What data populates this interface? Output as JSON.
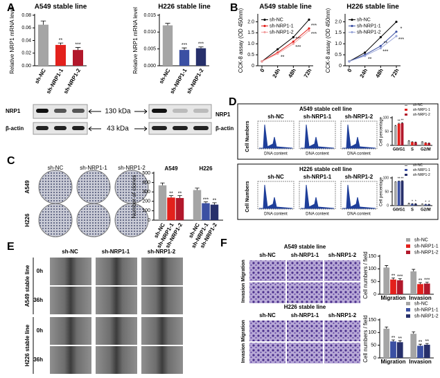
{
  "panel_labels": [
    "A",
    "B",
    "C",
    "D",
    "E",
    "F"
  ],
  "blot": {
    "left_labels": [
      "NRP1",
      "β-actin"
    ],
    "markers": [
      "130 kDa",
      "43 kDa"
    ],
    "right_labels": [
      "NRP1",
      "β-actin"
    ]
  },
  "colony": {
    "columns": [
      "sh-NC",
      "sh-NRP1-1",
      "sh-NRP1-2"
    ],
    "rows": [
      "A549",
      "H226"
    ]
  },
  "flow": [
    {
      "title": "A549 stable cell line",
      "columns": [
        "sh-NC",
        "sh-NRP1-1",
        "sh-NRP1-2"
      ],
      "ylabel": "Cell Numbers",
      "xlabel": "DNA content"
    },
    {
      "title": "H226 stable cell line",
      "columns": [
        "sh-NC",
        "sh-NRP1-1",
        "sh-NRP1-2"
      ],
      "ylabel": "Cell Numbers",
      "xlabel": "DNA content"
    }
  ],
  "wound": {
    "columns": [
      "sh-NC",
      "sh-NRP1-1",
      "sh-NRP1-2"
    ],
    "times": [
      "0h",
      "36h"
    ],
    "lines": [
      "A549 stable line",
      "H226 stable line"
    ]
  },
  "transwell": [
    {
      "title": "A549 stable line",
      "columns": [
        "sh-NC",
        "sh-NRP1-1",
        "sh-NRP1-2"
      ],
      "rows": [
        "Migration",
        "Invasion"
      ]
    },
    {
      "title": "H226 stable line",
      "columns": [
        "sh-NC",
        "sh-NRP1-1",
        "sh-NRP1-2"
      ],
      "rows": [
        "Migration",
        "Invasion"
      ]
    }
  ],
  "chart_data": [
    {
      "type": "bar",
      "title": "A549 stable line",
      "ylabel": "Relative NRP1 mRNA level",
      "categories": [
        "sh-NC",
        "sh-NRP1-1",
        "sh-NRP1-2"
      ],
      "values": [
        0.065,
        0.033,
        0.025
      ],
      "errors": [
        0.006,
        0.003,
        0.004
      ],
      "colors": [
        "#a5a5a5",
        "#e3211c",
        "#b2182b"
      ],
      "sig": [
        null,
        "**",
        "***"
      ],
      "ylim": [
        0,
        0.08
      ],
      "yticks": [
        {
          "value": 0,
          "label": "0.00"
        },
        0.02,
        0.04,
        0.06,
        0.08
      ]
    },
    {
      "type": "bar",
      "title": "H226 stable line",
      "ylabel": "Relative NRP1 mRNA level",
      "categories": [
        "sh-NC",
        "sh-NRP1-1",
        "sh-NRP1-2"
      ],
      "values": [
        0.012,
        0.0047,
        0.0052
      ],
      "errors": [
        0.0006,
        0.0006,
        0.0004
      ],
      "colors": [
        "#a5a5a5",
        "#3b50a3",
        "#27306b"
      ],
      "sig": [
        null,
        "***",
        "***"
      ],
      "ylim": [
        0,
        0.015
      ],
      "yticks": [
        {
          "value": 0,
          "label": "0.000"
        },
        0.005,
        {
          "value": 0.01,
          "label": "0.010"
        },
        0.015
      ]
    },
    {
      "type": "line",
      "title": "A549 stable line",
      "ylabel": "CCK-8 assay (OD 450nm)",
      "legend": "top-left",
      "categories": [
        "0",
        "24h",
        "48h",
        "72h"
      ],
      "series": [
        {
          "name": "sh-NC",
          "color": "#000000",
          "values": [
            0.2,
            0.75,
            1.3,
            2.1
          ],
          "sig": [
            null,
            null,
            null,
            null
          ]
        },
        {
          "name": "sh-NRP1-1",
          "color": "#e3211c",
          "values": [
            0.2,
            0.6,
            1.1,
            1.7
          ],
          "sig": [
            null,
            null,
            "***",
            "***"
          ]
        },
        {
          "name": "sh-NRP1-2",
          "color": "#f2a0a0",
          "values": [
            0.2,
            0.55,
            1.0,
            1.6
          ],
          "sig": [
            null,
            "**",
            "***",
            "***"
          ]
        }
      ],
      "ylim": [
        0,
        2.3
      ],
      "yticks": [
        0,
        0.5,
        {
          "value": 1,
          "label": "1.0"
        },
        1.5,
        {
          "value": 2,
          "label": "2.0"
        }
      ]
    },
    {
      "type": "line",
      "title": "H226 stable line",
      "ylabel": "CCK-8 assay (OD 450nm)",
      "legend": "top-left",
      "categories": [
        "0",
        "24h",
        "48h",
        "72h"
      ],
      "series": [
        {
          "name": "sh-NC",
          "color": "#000000",
          "values": [
            0.2,
            0.6,
            1.3,
            2.0
          ],
          "sig": [
            null,
            null,
            null,
            null
          ]
        },
        {
          "name": "sh-NRP1-1",
          "color": "#3b50a3",
          "values": [
            0.2,
            0.5,
            0.9,
            1.55
          ],
          "sig": [
            null,
            null,
            "**",
            "*"
          ]
        },
        {
          "name": "sh-NRP1-2",
          "color": "#9aa6d8",
          "values": [
            0.2,
            0.45,
            0.8,
            1.35
          ],
          "sig": [
            null,
            "**",
            "***",
            "***"
          ]
        }
      ],
      "ylim": [
        0,
        2.3
      ],
      "yticks": [
        0,
        0.5,
        {
          "value": 1,
          "label": "1.0"
        },
        1.5,
        {
          "value": 2,
          "label": "2.0"
        }
      ]
    },
    {
      "type": "grouped_bar",
      "ylabel": "Number of clones",
      "bar_labels": true,
      "categories": [
        "A549",
        "H226"
      ],
      "series": [
        {
          "name": "sh-NC",
          "colors": [
            "#a5a5a5",
            "#a5a5a5"
          ],
          "values": [
            370,
            320
          ],
          "errors": [
            25,
            20
          ],
          "sig": [
            null,
            null
          ]
        },
        {
          "name": "sh-NRP1-1",
          "colors": [
            "#e3211c",
            "#3b50a3"
          ],
          "values": [
            240,
            180
          ],
          "errors": [
            20,
            15
          ],
          "sig": [
            "**",
            "***"
          ]
        },
        {
          "name": "sh-NRP1-2",
          "colors": [
            "#b2182b",
            "#27306b"
          ],
          "values": [
            235,
            165
          ],
          "errors": [
            25,
            20
          ],
          "sig": [
            "**",
            "**"
          ]
        }
      ],
      "ylim": [
        0,
        500
      ],
      "yticks": [
        0,
        100,
        200,
        300,
        400,
        500
      ]
    },
    {
      "type": "grouped_bar",
      "ylabel": "Cell percentage",
      "legend": "top-right",
      "categories": [
        "G0/G1",
        "S",
        "G2/M"
      ],
      "series": [
        {
          "name": "sh-NC",
          "color": "#a5a5a5",
          "values": [
            70,
            16,
            12
          ],
          "errors": [
            2,
            1,
            1
          ],
          "sig": [
            null,
            null,
            null
          ]
        },
        {
          "name": "sh-NRP1-1",
          "color": "#e3211c",
          "values": [
            78,
            12,
            9
          ],
          "errors": [
            2,
            1,
            1
          ],
          "sig": [
            "**",
            null,
            null
          ]
        },
        {
          "name": "sh-NRP1-2",
          "color": "#b2182b",
          "values": [
            80,
            11,
            8
          ],
          "errors": [
            2,
            1,
            1
          ],
          "sig": [
            "**",
            null,
            null
          ]
        }
      ],
      "ylim": [
        0,
        100
      ],
      "yticks": [
        0,
        50,
        100
      ]
    },
    {
      "type": "grouped_bar",
      "ylabel": "Cell percentage",
      "legend": "top-right",
      "categories": [
        "G0/G1",
        "S",
        "G2/M"
      ],
      "series": [
        {
          "name": "sh-NC",
          "color": "#a5a5a5",
          "values": [
            85,
            8,
            5
          ],
          "errors": [
            1,
            1,
            1
          ],
          "sig": [
            null,
            null,
            null
          ]
        },
        {
          "name": "sh-NRP1-1",
          "color": "#3b50a3",
          "values": [
            88,
            6,
            4
          ],
          "errors": [
            1,
            1,
            1
          ],
          "sig": [
            "**",
            "*",
            "*"
          ]
        },
        {
          "name": "sh-NRP1-2",
          "color": "#27306b",
          "values": [
            89,
            6,
            4
          ],
          "errors": [
            1,
            1,
            1
          ],
          "sig": [
            "**",
            "*",
            "*"
          ]
        }
      ],
      "ylim": [
        0,
        100
      ],
      "yticks": [
        0,
        50,
        100
      ]
    },
    {
      "type": "grouped_bar",
      "ylabel": "Cell numbers / field",
      "legend": "top-right",
      "categories": [
        "Migration",
        "Invasion"
      ],
      "series": [
        {
          "name": "sh-NC",
          "color": "#a5a5a5",
          "values": [
            105,
            90
          ],
          "errors": [
            8,
            8
          ],
          "sig": [
            null,
            null
          ]
        },
        {
          "name": "sh-NRP1-1",
          "color": "#e3211c",
          "values": [
            58,
            40
          ],
          "errors": [
            6,
            6
          ],
          "sig": [
            "**",
            "**"
          ]
        },
        {
          "name": "sh-NRP1-2",
          "color": "#b2182b",
          "values": [
            55,
            42
          ],
          "errors": [
            6,
            5
          ],
          "sig": [
            "***",
            "***"
          ]
        }
      ],
      "ylim": [
        0,
        150
      ],
      "yticks": [
        0,
        50,
        100,
        150
      ]
    },
    {
      "type": "grouped_bar",
      "ylabel": "Cell numbers / field",
      "legend": "top-right",
      "categories": [
        "Migration",
        "Invasion"
      ],
      "series": [
        {
          "name": "sh-NC",
          "color": "#a5a5a5",
          "values": [
            115,
            95
          ],
          "errors": [
            7,
            8
          ],
          "sig": [
            null,
            null
          ]
        },
        {
          "name": "sh-NRP1-1",
          "color": "#3b50a3",
          "values": [
            65,
            48
          ],
          "errors": [
            6,
            6
          ],
          "sig": [
            "**",
            "**"
          ]
        },
        {
          "name": "sh-NRP1-2",
          "color": "#27306b",
          "values": [
            62,
            52
          ],
          "errors": [
            6,
            5
          ],
          "sig": [
            "**",
            "**"
          ]
        }
      ],
      "ylim": [
        0,
        150
      ],
      "yticks": [
        0,
        50,
        100,
        150
      ]
    }
  ]
}
